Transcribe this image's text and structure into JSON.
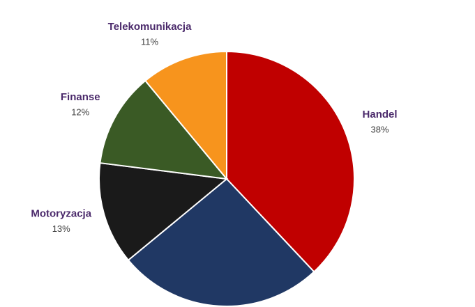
{
  "chart_data": {
    "type": "pie",
    "categories": [
      "Handel",
      null,
      "Motoryzacja",
      "Finanse",
      "Telekomunikacja"
    ],
    "values": [
      38,
      26,
      13,
      12,
      11
    ],
    "value_labels": [
      "38%",
      null,
      "13%",
      "12%",
      "11%"
    ],
    "colors": [
      "#c00000",
      "#203864",
      "#1a1a1a",
      "#3a5a25",
      "#f7941d"
    ]
  }
}
